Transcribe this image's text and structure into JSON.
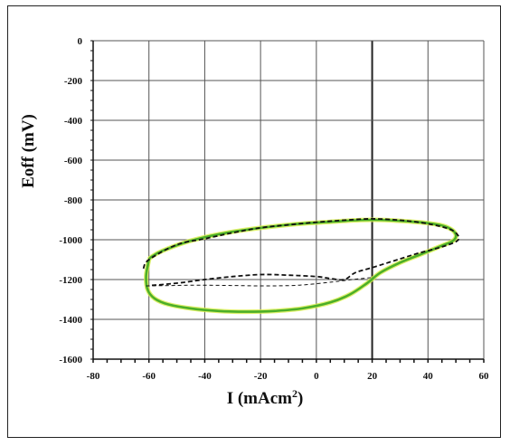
{
  "chart_data": {
    "type": "line",
    "title": "",
    "xlabel": "I (mAcm",
    "xlabel_sup": "2",
    "xlabel_close": ")",
    "ylabel": "Eoff (mV)",
    "xlim": [
      -80,
      60
    ],
    "ylim": [
      -1600,
      0
    ],
    "x_ticks": [
      -80,
      -60,
      -40,
      -20,
      0,
      20,
      40,
      60
    ],
    "y_ticks": [
      0,
      -200,
      -400,
      -600,
      -800,
      -1000,
      -1200,
      -1400,
      -1600
    ],
    "grid": true,
    "series": [
      {
        "style": "solid-green",
        "color": "#4caf28",
        "x": [
          -60,
          -59,
          -55,
          -45,
          -30,
          -10,
          5,
          20,
          35,
          44,
          48,
          50,
          49,
          45,
          38,
          30,
          23,
          18,
          12,
          5,
          -5,
          -15,
          -25,
          -35,
          -45,
          -53,
          -58,
          -60.5,
          -61,
          -60
        ],
        "y": [
          -1100,
          -1085,
          -1055,
          -1005,
          -960,
          -925,
          -910,
          -900,
          -910,
          -925,
          -945,
          -975,
          -1005,
          -1030,
          -1070,
          -1115,
          -1165,
          -1220,
          -1275,
          -1315,
          -1345,
          -1358,
          -1362,
          -1358,
          -1345,
          -1325,
          -1295,
          -1250,
          -1180,
          -1100
        ]
      },
      {
        "style": "dashed-black",
        "color": "#111111",
        "x": [
          -62,
          -60,
          -50,
          -40,
          -30,
          -20,
          -10,
          0,
          10,
          20,
          30,
          38,
          45,
          49,
          51,
          50,
          44,
          36,
          28,
          20,
          14,
          10,
          5,
          0,
          -10,
          -20,
          -30,
          -40,
          -48,
          -55,
          -60
        ],
        "y": [
          -1145,
          -1100,
          -1025,
          -995,
          -965,
          -940,
          -925,
          -912,
          -902,
          -895,
          -902,
          -915,
          -935,
          -955,
          -985,
          -1010,
          -1040,
          -1070,
          -1105,
          -1140,
          -1165,
          -1200,
          -1195,
          -1185,
          -1178,
          -1175,
          -1185,
          -1200,
          -1215,
          -1225,
          -1230
        ]
      },
      {
        "style": "dashed-thin",
        "color": "#111111",
        "x": [
          -61,
          -52,
          -42,
          -30,
          -18,
          -6,
          6,
          14,
          20
        ],
        "y": [
          -1232,
          -1230,
          -1228,
          -1230,
          -1232,
          -1228,
          -1212,
          -1198,
          -1190
        ]
      }
    ]
  }
}
